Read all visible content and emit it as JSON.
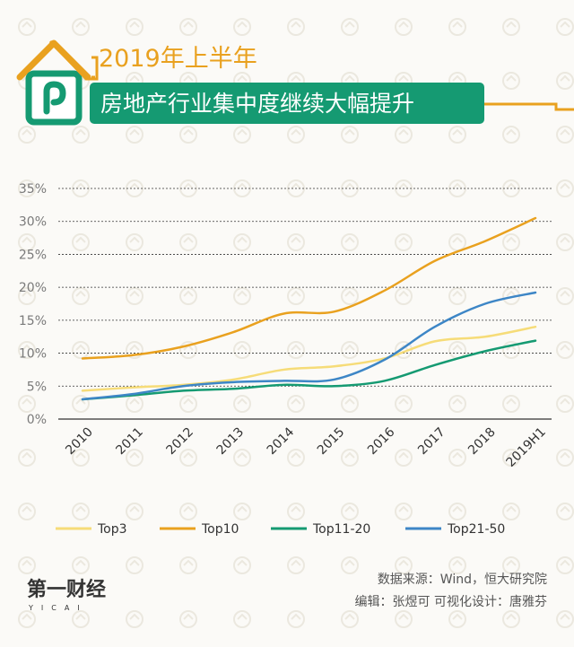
{
  "header": {
    "subtitle": "2019年上半年",
    "title": "房地产行业集中度继续大幅提升"
  },
  "colors": {
    "accent": "#e9a11f",
    "title_bg": "#159a72",
    "Top3": "#f6dc78",
    "Top10": "#e9a11f",
    "Top11-20": "#159a72",
    "Top21-50": "#3d86c6"
  },
  "chart_data": {
    "type": "line",
    "x": [
      "2010",
      "2011",
      "2012",
      "2013",
      "2014",
      "2015",
      "2016",
      "2017",
      "2018",
      "2019H1"
    ],
    "yticks": [
      "0%",
      "5%",
      "10%",
      "15%",
      "20%",
      "25%",
      "30%",
      "35%"
    ],
    "ylim": [
      0,
      35
    ],
    "grid": true,
    "legend_position": "bottom",
    "series": [
      {
        "name": "Top3",
        "values": [
          4.3,
          4.8,
          5.2,
          6.0,
          7.5,
          8.0,
          9.2,
          11.8,
          12.5,
          14.0
        ]
      },
      {
        "name": "Top10",
        "values": [
          9.2,
          9.7,
          11.0,
          13.2,
          16.0,
          16.3,
          19.5,
          24.0,
          27.0,
          30.5
        ]
      },
      {
        "name": "Top11-20",
        "values": [
          3.0,
          3.6,
          4.3,
          4.6,
          5.2,
          5.0,
          5.8,
          8.2,
          10.3,
          11.9
        ]
      },
      {
        "name": "Top21-50",
        "values": [
          3.0,
          3.8,
          5.0,
          5.6,
          5.8,
          6.0,
          9.0,
          14.0,
          17.5,
          19.2
        ]
      }
    ]
  },
  "footer": {
    "source": "数据来源：Wind，恒大研究院",
    "credits": "编辑：张煜可    可视化设计：唐雅芬",
    "logo": "第一财经",
    "logo_sub": "YICAI"
  }
}
